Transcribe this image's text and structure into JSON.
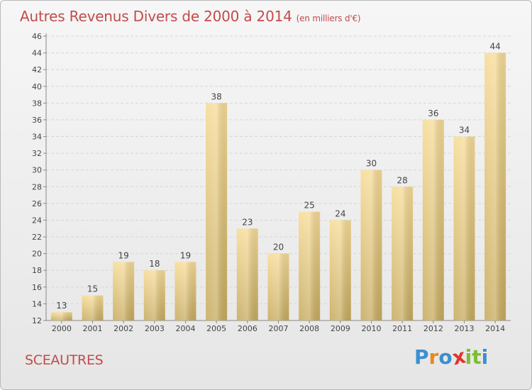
{
  "chart_data": {
    "type": "bar",
    "title": "Autres Revenus Divers de 2000 à 2014",
    "subtitle": "(en milliers d'€)",
    "categories": [
      "2000",
      "2001",
      "2002",
      "2003",
      "2004",
      "2005",
      "2006",
      "2007",
      "2008",
      "2009",
      "2010",
      "2011",
      "2012",
      "2013",
      "2014"
    ],
    "values": [
      13,
      15,
      19,
      18,
      19,
      38,
      23,
      20,
      25,
      24,
      30,
      28,
      36,
      34,
      44
    ],
    "ylim": [
      12,
      46
    ],
    "yticks": [
      12,
      14,
      16,
      18,
      20,
      22,
      24,
      26,
      28,
      30,
      32,
      34,
      36,
      38,
      40,
      42,
      44,
      46
    ],
    "grid": true,
    "bar_color": "#e8c97a",
    "xlabel": "",
    "ylabel": ""
  },
  "place_name": "SCEAUTRES",
  "logo": {
    "letters": [
      "P",
      "r",
      "o",
      "x",
      "i",
      "t",
      "i"
    ],
    "colors": [
      "#3a8fd0",
      "#e58a1f",
      "#3a8fd0",
      "#e0352b",
      "#7cbf2f",
      "#7cbf2f",
      "#3a8fd0"
    ]
  },
  "title_color": "#c24b4b"
}
